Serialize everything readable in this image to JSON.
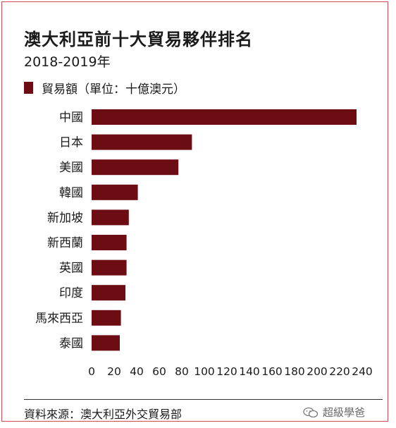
{
  "title": "澳大利亞前十大貿易夥伴排名",
  "subtitle": "2018-2019年",
  "legend_label": "貿易額（單位：十億澳元）",
  "source": "資料來源：澳大利亞外交貿易部",
  "watermark": "超級學爸",
  "watermark_icon": "wechat-icon",
  "colors": {
    "bar": "#6b0d12",
    "frame": "#d94a55",
    "text": "#1a1a1a",
    "axis": "#333333"
  },
  "chart_data": {
    "type": "bar",
    "orientation": "horizontal",
    "categories": [
      "中國",
      "日本",
      "美國",
      "韓國",
      "新加坡",
      "新西蘭",
      "英國",
      "印度",
      "馬來西亞",
      "泰國"
    ],
    "series": [
      {
        "name": "貿易額（單位：十億澳元）",
        "values": [
          235,
          89,
          77,
          41,
          33,
          31,
          31,
          30,
          26,
          25
        ]
      }
    ],
    "x_ticks": [
      "0",
      "20",
      "40",
      "60",
      "80",
      "100",
      "120",
      "140",
      "160",
      "180",
      "200",
      "220",
      "240"
    ],
    "xlim": [
      0,
      240
    ],
    "grid": false,
    "legend_position": "top-left"
  }
}
